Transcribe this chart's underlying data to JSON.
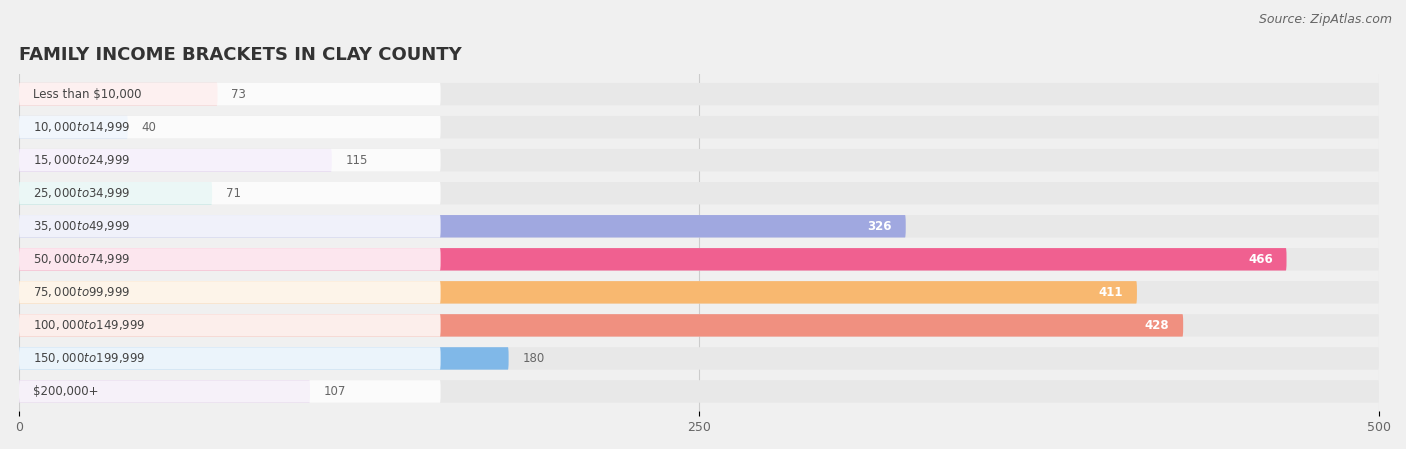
{
  "title": "FAMILY INCOME BRACKETS IN CLAY COUNTY",
  "source": "Source: ZipAtlas.com",
  "categories": [
    "Less than $10,000",
    "$10,000 to $14,999",
    "$15,000 to $24,999",
    "$25,000 to $34,999",
    "$35,000 to $49,999",
    "$50,000 to $74,999",
    "$75,000 to $99,999",
    "$100,000 to $149,999",
    "$150,000 to $199,999",
    "$200,000+"
  ],
  "values": [
    73,
    40,
    115,
    71,
    326,
    466,
    411,
    428,
    180,
    107
  ],
  "bar_colors": [
    "#F4A0A0",
    "#A8C8F0",
    "#C8A8E8",
    "#80D0C8",
    "#A0A8E0",
    "#F06090",
    "#F8B870",
    "#F09080",
    "#80B8E8",
    "#C8A8D8"
  ],
  "xlim": [
    0,
    500
  ],
  "xticks": [
    0,
    250,
    500
  ],
  "background_color": "#f0f0f0",
  "bar_bg_color": "#e8e8e8",
  "title_fontsize": 13,
  "label_fontsize": 8.5,
  "value_fontsize": 8.5,
  "source_fontsize": 9
}
